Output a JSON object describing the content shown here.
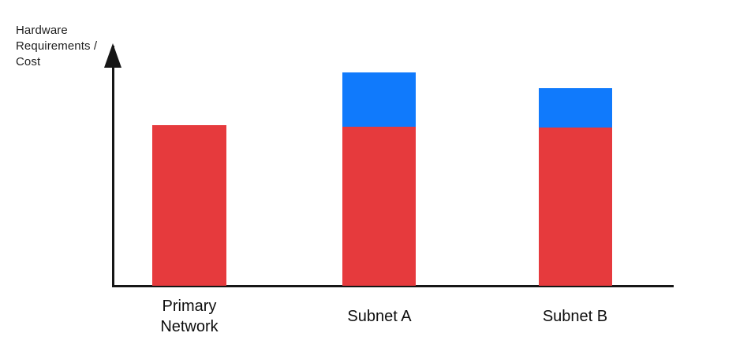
{
  "chart_data": {
    "type": "bar",
    "stacked": true,
    "title": "",
    "ylabel": "Hardware Requirements / Cost",
    "xlabel": "",
    "categories": [
      "Primary Network",
      "Subnet A",
      "Subnet B"
    ],
    "series": [
      {
        "name": "red-base-segment",
        "color": "#E63A3D",
        "values": [
          204,
          202,
          201
        ]
      },
      {
        "name": "blue-top-segment",
        "color": "#107AFC",
        "values": [
          0,
          69,
          50
        ]
      }
    ],
    "value_units": "relative height (no numeric axis shown)",
    "axis_numeric": false,
    "grid": false,
    "legend": false,
    "axis_color": "#161616",
    "background_color": "#ffffff"
  }
}
